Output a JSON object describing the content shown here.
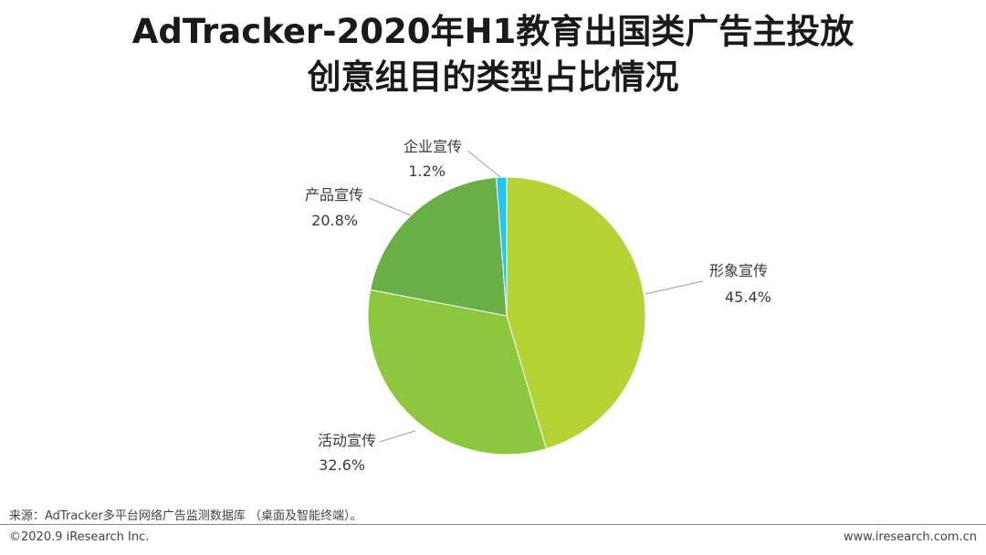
{
  "title_lines": [
    "AdTracker-2020年H1教育出国类广告主投放",
    "创意组目的类型占比情况"
  ],
  "chart_data": {
    "type": "pie",
    "title": "AdTracker-2020年H1教育出国类广告主投放创意组目的类型占比情况",
    "slices": [
      {
        "name": "形象宣传",
        "value": 45.4,
        "label": "45.4%",
        "color": "#b5d334"
      },
      {
        "name": "活动宣传",
        "value": 32.6,
        "label": "32.6%",
        "color": "#8dc63f"
      },
      {
        "name": "产品宣传",
        "value": 20.8,
        "label": "20.8%",
        "color": "#6aaf45"
      },
      {
        "name": "企业宣传",
        "value": 1.2,
        "label": "1.2%",
        "color": "#1ec8f2"
      }
    ]
  },
  "footer": {
    "source": "来源：AdTracker多平台网络广告监测数据库 （桌面及智能终端）。",
    "copyright": "©2020.9 iResearch Inc.",
    "website": "www.iresearch.com.cn"
  }
}
